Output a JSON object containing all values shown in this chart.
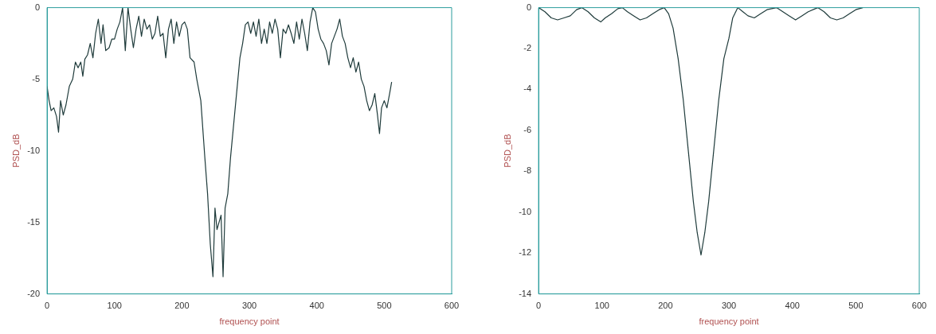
{
  "chart_data": [
    {
      "type": "line",
      "xlabel": "frequency point",
      "ylabel": "PSD_dB",
      "xlim": [
        0,
        600
      ],
      "xticks": [
        0,
        100,
        200,
        300,
        400,
        500,
        600
      ],
      "ylim": [
        -20,
        0
      ],
      "yticks": [
        -20,
        -15,
        -10,
        -5,
        0
      ],
      "grid": false,
      "legend": false,
      "marker": "none",
      "line_style": "solid",
      "series": [
        {
          "color": "#1f3b3b",
          "x": [
            0,
            3,
            6,
            10,
            14,
            17,
            20,
            24,
            28,
            33,
            38,
            42,
            46,
            50,
            53,
            56,
            60,
            64,
            68,
            72,
            76,
            80,
            83,
            87,
            92,
            96,
            100,
            104,
            108,
            112,
            116,
            120,
            124,
            128,
            132,
            136,
            140,
            144,
            148,
            152,
            156,
            160,
            164,
            168,
            172,
            176,
            180,
            184,
            188,
            192,
            196,
            200,
            204,
            208,
            212,
            218,
            222,
            228,
            234,
            238,
            242,
            246,
            249,
            252,
            255,
            258,
            261,
            264,
            268,
            272,
            278,
            282,
            286,
            290,
            294,
            298,
            302,
            306,
            310,
            314,
            318,
            322,
            326,
            330,
            334,
            338,
            342,
            346,
            350,
            354,
            358,
            362,
            366,
            370,
            374,
            378,
            382,
            386,
            390,
            394,
            398,
            402,
            406,
            410,
            414,
            418,
            422,
            426,
            430,
            434,
            438,
            442,
            446,
            450,
            454,
            458,
            462,
            466,
            470,
            474,
            478,
            482,
            486,
            490,
            493,
            496,
            500,
            504,
            508,
            511
          ],
          "values": [
            -5.5,
            -6.5,
            -7.2,
            -7.0,
            -7.6,
            -8.7,
            -6.5,
            -7.5,
            -6.8,
            -5.5,
            -5.0,
            -3.8,
            -4.2,
            -3.8,
            -4.8,
            -3.6,
            -3.3,
            -2.5,
            -3.5,
            -1.8,
            -0.8,
            -2.5,
            -1.2,
            -3.0,
            -2.8,
            -2.2,
            -2.2,
            -1.5,
            -1.0,
            0,
            -3.0,
            0,
            -1.5,
            -2.8,
            -1.5,
            -0.6,
            -2.0,
            -0.8,
            -1.5,
            -1.2,
            -2.2,
            -1.8,
            -0.6,
            -2.0,
            -1.8,
            -3.5,
            -1.5,
            -0.8,
            -2.5,
            -1.0,
            -2.0,
            -1.2,
            -1.0,
            -1.5,
            -3.5,
            -3.8,
            -5.0,
            -6.5,
            -10.5,
            -13.0,
            -16.5,
            -18.8,
            -14.0,
            -15.5,
            -15.0,
            -14.5,
            -18.8,
            -14.0,
            -13.0,
            -10.5,
            -7.5,
            -5.5,
            -3.5,
            -2.5,
            -1.2,
            -1.0,
            -1.8,
            -1.0,
            -2.0,
            -0.8,
            -2.5,
            -1.5,
            -2.5,
            -1.0,
            -1.8,
            -0.8,
            -1.5,
            -3.5,
            -1.5,
            -1.8,
            -1.2,
            -1.8,
            -2.5,
            -1.0,
            -2.2,
            -0.8,
            -1.8,
            -3.0,
            -1.0,
            0,
            -0.3,
            -1.5,
            -2.2,
            -2.5,
            -3.0,
            -4.0,
            -2.5,
            -2.0,
            -1.5,
            -0.8,
            -2.0,
            -2.5,
            -3.5,
            -4.2,
            -3.5,
            -4.5,
            -3.8,
            -5.0,
            -5.5,
            -6.5,
            -7.2,
            -6.8,
            -6.0,
            -7.5,
            -8.8,
            -7.0,
            -6.5,
            -7.0,
            -6.0,
            -5.2
          ]
        }
      ]
    },
    {
      "type": "line",
      "xlabel": "frequency point",
      "ylabel": "PSD_dB",
      "xlim": [
        0,
        600
      ],
      "xticks": [
        0,
        100,
        200,
        300,
        400,
        500,
        600
      ],
      "ylim": [
        -14,
        0
      ],
      "yticks": [
        -14,
        -12,
        -10,
        -8,
        -6,
        -4,
        -2,
        0
      ],
      "grid": false,
      "legend": false,
      "marker": "none",
      "line_style": "solid",
      "series": [
        {
          "color": "#1f3b3b",
          "x": [
            0,
            10,
            20,
            30,
            40,
            50,
            60,
            68,
            78,
            88,
            98,
            105,
            115,
            125,
            132,
            140,
            150,
            160,
            170,
            180,
            190,
            198,
            205,
            212,
            220,
            228,
            236,
            244,
            250,
            256,
            262,
            268,
            276,
            284,
            292,
            300,
            306,
            314,
            322,
            330,
            340,
            350,
            360,
            375,
            385,
            395,
            405,
            415,
            425,
            440,
            450,
            460,
            470,
            480,
            490,
            500,
            511
          ],
          "values": [
            0,
            -0.2,
            -0.5,
            -0.6,
            -0.5,
            -0.4,
            -0.1,
            0,
            -0.2,
            -0.5,
            -0.7,
            -0.5,
            -0.3,
            -0.05,
            0,
            -0.2,
            -0.4,
            -0.6,
            -0.5,
            -0.3,
            -0.1,
            0,
            -0.3,
            -1.0,
            -2.5,
            -4.5,
            -7.0,
            -9.5,
            -11.0,
            -12.1,
            -11.0,
            -9.5,
            -7.0,
            -4.5,
            -2.5,
            -1.5,
            -0.5,
            0,
            -0.2,
            -0.4,
            -0.5,
            -0.3,
            -0.1,
            0,
            -0.2,
            -0.4,
            -0.6,
            -0.4,
            -0.2,
            0,
            -0.2,
            -0.5,
            -0.6,
            -0.5,
            -0.3,
            -0.1,
            0
          ]
        }
      ]
    }
  ]
}
